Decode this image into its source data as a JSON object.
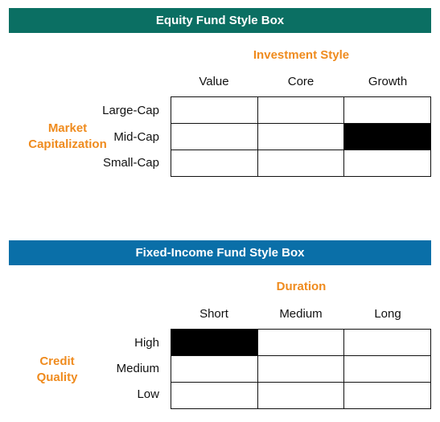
{
  "equity": {
    "title": "Equity Fund Style Box",
    "column_axis_title": "Investment Style",
    "row_axis_title_line1": "Market",
    "row_axis_title_line2": "Capitalization",
    "columns": [
      "Value",
      "Core",
      "Growth"
    ],
    "rows": [
      "Large-Cap",
      "Mid-Cap",
      "Small-Cap"
    ],
    "selected": {
      "row": "Mid-Cap",
      "column": "Growth"
    }
  },
  "fixed_income": {
    "title": "Fixed-Income Fund Style Box",
    "column_axis_title": "Duration",
    "row_axis_title_line1": "Credit",
    "row_axis_title_line2": "Quality",
    "columns": [
      "Short",
      "Medium",
      "Long"
    ],
    "rows": [
      "High",
      "Medium",
      "Low"
    ],
    "selected": {
      "row": "High",
      "column": "Short"
    }
  },
  "colors": {
    "equity_banner": "#0b6f63",
    "fixed_income_banner": "#0a6fa8",
    "axis_title": "#ef8b1e",
    "selected_cell": "#000000"
  }
}
